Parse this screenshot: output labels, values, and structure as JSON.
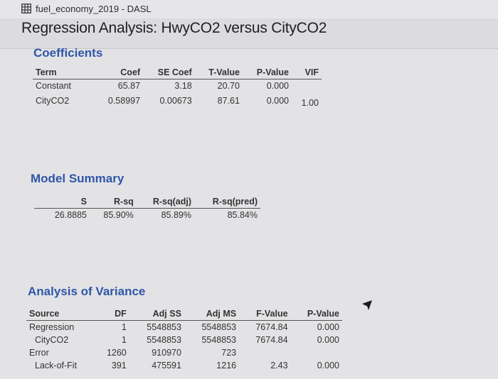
{
  "window": {
    "title": "fuel_economy_2019 - DASL"
  },
  "page": {
    "title": "Regression Analysis: HwyCO2 versus CityCO2"
  },
  "coefficients": {
    "heading": "Coefficients",
    "columns": [
      "Term",
      "Coef",
      "SE Coef",
      "T-Value",
      "P-Value",
      "VIF"
    ],
    "rows": [
      [
        "Constant",
        "65.87",
        "3.18",
        "20.70",
        "0.000",
        ""
      ],
      [
        "CityCO2",
        "0.58997",
        "0.00673",
        "87.61",
        "0.000",
        "1.00"
      ]
    ]
  },
  "model_summary": {
    "heading": "Model Summary",
    "columns": [
      "S",
      "R-sq",
      "R-sq(adj)",
      "R-sq(pred)"
    ],
    "rows": [
      [
        "26.8885",
        "85.90%",
        "85.89%",
        "85.84%"
      ]
    ]
  },
  "anova": {
    "heading": "Analysis of Variance",
    "columns": [
      "Source",
      "DF",
      "Adj SS",
      "Adj MS",
      "F-Value",
      "P-Value"
    ],
    "rows": [
      [
        "Regression",
        "1",
        "5548853",
        "5548853",
        "7674.84",
        "0.000"
      ],
      [
        "CityCO2",
        "1",
        "5548853",
        "5548853",
        "7674.84",
        "0.000"
      ],
      [
        "Error",
        "1260",
        "910970",
        "723",
        "",
        ""
      ],
      [
        "Lack-of-Fit",
        "391",
        "475591",
        "1216",
        "2.43",
        "0.000"
      ]
    ]
  },
  "icons": {
    "window": "table-grid-icon",
    "cursor": "mouse-pointer-icon"
  },
  "colors": {
    "heading": "#2f56a8",
    "background": "#e3e3e6"
  }
}
